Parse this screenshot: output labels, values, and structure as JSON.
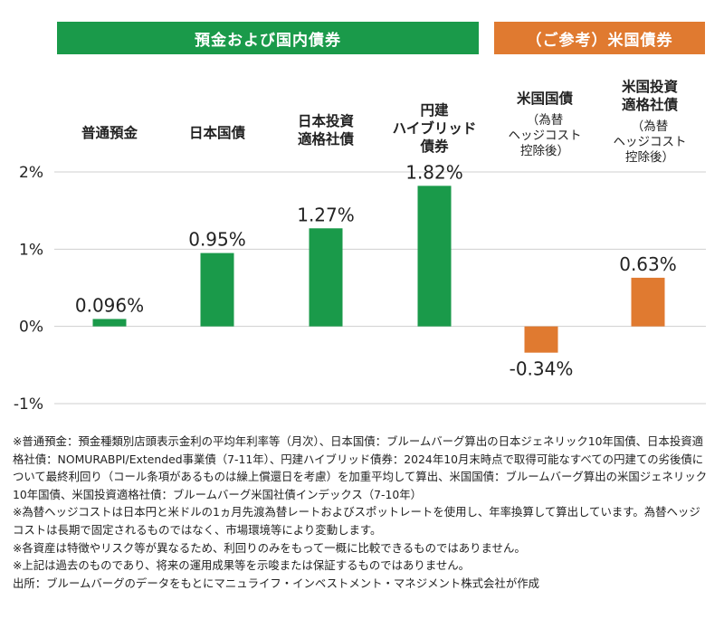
{
  "banners": {
    "domestic": "預金および国内債券",
    "us": "（ご参考）米国債券"
  },
  "categories": [
    {
      "label": "普通預金",
      "note": ""
    },
    {
      "label": "日本国債",
      "note": ""
    },
    {
      "label": "日本投資\n適格社債",
      "note": ""
    },
    {
      "label": "円建\nハイブリッド\n債券",
      "note": ""
    },
    {
      "label": "米国国債",
      "note": "（為替\nヘッジコスト\n控除後）"
    },
    {
      "label": "米国投資\n適格社債",
      "note": "（為替\nヘッジコスト\n控除後）"
    }
  ],
  "chart_data": {
    "type": "bar",
    "categories": [
      "普通預金",
      "日本国債",
      "日本投資適格社債",
      "円建ハイブリッド債券",
      "米国国債",
      "米国投資適格社債"
    ],
    "values": [
      0.096,
      0.95,
      1.27,
      1.82,
      -0.34,
      0.63
    ],
    "value_labels": [
      "0.096%",
      "0.95%",
      "1.27%",
      "1.82%",
      "-0.34%",
      "0.63%"
    ],
    "bar_colors": [
      "#1a9a4a",
      "#1a9a4a",
      "#1a9a4a",
      "#1a9a4a",
      "#e07a30",
      "#e07a30"
    ],
    "ylim": [
      -1,
      2
    ],
    "yticks": [
      2,
      1,
      0,
      -1
    ],
    "ytick_labels": [
      "2%",
      "1%",
      "0%",
      "-1%"
    ],
    "grid": true
  },
  "notes": [
    "※普通預金：預金種類別店頭表示金利の平均年利率等（月次）、日本国債：ブルームバーグ算出の日本ジェネリック10年国債、日本投資適格社債：NOMURABPI/Extended事業債（7-11年）、円建ハイブリッド債券：2024年10月末時点で取得可能なすべての円建ての劣後債について最終利回り（コール条項があるものは繰上償還日を考慮）を加重平均して算出、米国国債：ブルームバーグ算出の米国ジェネリック10年国債、米国投資適格社債：ブルームバーグ米国社債インデックス（7-10年）",
    "※為替ヘッジコストは日本円と米ドルの1ヵ月先渡為替レートおよびスポットレートを使用し、年率換算して算出しています。為替ヘッジコストは長期で固定されるものではなく、市場環境等により変動します。",
    "※各資産は特徴やリスク等が異なるため、利回りのみをもって一概に比較できるものではありません。",
    "※上記は過去のものであり、将来の運用成果等を示唆または保証するものではありません。",
    "出所：ブルームバーグのデータをもとにマニュライフ・インベストメント・マネジメント株式会社が作成"
  ]
}
